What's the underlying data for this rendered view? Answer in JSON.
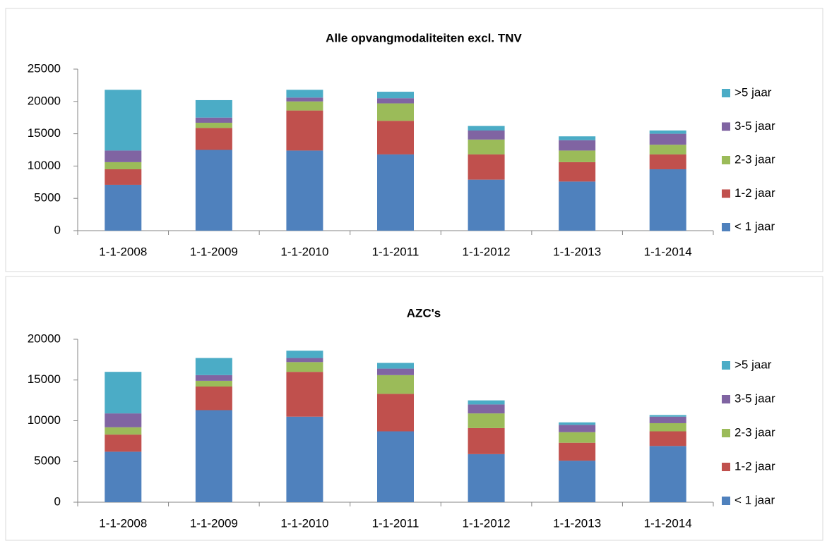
{
  "chart_data": [
    {
      "type": "bar",
      "stacked": true,
      "title": "Alle opvangmodaliteiten excl. TNV",
      "categories": [
        "1-1-2008",
        "1-1-2009",
        "1-1-2010",
        "1-1-2011",
        "1-1-2012",
        "1-1-2013",
        "1-1-2014"
      ],
      "series": [
        {
          "name": "< 1 jaar",
          "color": "#4f81bd",
          "values": [
            7100,
            12500,
            12400,
            11800,
            7900,
            7600,
            9500
          ]
        },
        {
          "name": "1-2 jaar",
          "color": "#c0504d",
          "values": [
            2400,
            3400,
            6200,
            5200,
            3900,
            3000,
            2300
          ]
        },
        {
          "name": "2-3 jaar",
          "color": "#9bbb59",
          "values": [
            1100,
            800,
            1400,
            2700,
            2300,
            1800,
            1500
          ]
        },
        {
          "name": "3-5 jaar",
          "color": "#8064a2",
          "values": [
            1800,
            800,
            600,
            800,
            1400,
            1600,
            1700
          ]
        },
        {
          "name": ">5 jaar",
          "color": "#4bacc6",
          "values": [
            9400,
            2700,
            1200,
            1000,
            700,
            600,
            500
          ]
        }
      ],
      "ylim": [
        0,
        25000
      ],
      "yticks": [
        0,
        5000,
        10000,
        15000,
        20000,
        25000
      ],
      "legend": "right"
    },
    {
      "type": "bar",
      "stacked": true,
      "title": "AZC's",
      "categories": [
        "1-1-2008",
        "1-1-2009",
        "1-1-2010",
        "1-1-2011",
        "1-1-2012",
        "1-1-2013",
        "1-1-2014"
      ],
      "series": [
        {
          "name": "< 1 jaar",
          "color": "#4f81bd",
          "values": [
            6200,
            11300,
            10500,
            8700,
            5900,
            5100,
            6900
          ]
        },
        {
          "name": "1-2 jaar",
          "color": "#c0504d",
          "values": [
            2100,
            2900,
            5500,
            4600,
            3200,
            2200,
            1800
          ]
        },
        {
          "name": "2-3 jaar",
          "color": "#9bbb59",
          "values": [
            900,
            700,
            1200,
            2300,
            1800,
            1300,
            1000
          ]
        },
        {
          "name": "3-5 jaar",
          "color": "#8064a2",
          "values": [
            1700,
            700,
            500,
            800,
            1100,
            900,
            800
          ]
        },
        {
          "name": ">5 jaar",
          "color": "#4bacc6",
          "values": [
            5100,
            2100,
            900,
            700,
            500,
            300,
            200
          ]
        }
      ],
      "ylim": [
        0,
        20000
      ],
      "yticks": [
        0,
        5000,
        10000,
        15000,
        20000
      ],
      "legend": "right"
    }
  ]
}
